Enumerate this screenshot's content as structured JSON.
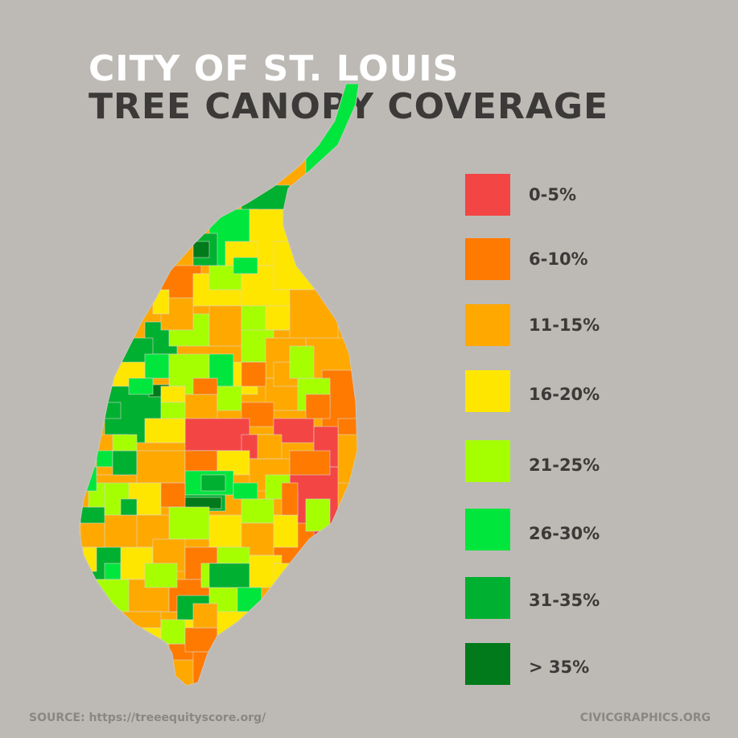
{
  "title": {
    "line1": "CITY OF ST. LOUIS",
    "line2": "TREE CANOPY COVERAGE"
  },
  "legend": [
    {
      "label": "0-5%",
      "color": "#f44545"
    },
    {
      "label": "6-10%",
      "color": "#ff7a00"
    },
    {
      "label": "11-15%",
      "color": "#ffa900"
    },
    {
      "label": "16-20%",
      "color": "#ffe600"
    },
    {
      "label": "21-25%",
      "color": "#a6ff00"
    },
    {
      "label": "26-30%",
      "color": "#00e63d"
    },
    {
      "label": "31-35%",
      "color": "#00b030"
    },
    {
      "label": "> 35%",
      "color": "#007a1a"
    }
  ],
  "colors": {
    "background": "#bdbab5",
    "title_primary": "#ffffff",
    "title_secondary": "#3b3a38",
    "footer_text": "#8a8783"
  },
  "footer": {
    "source": "SOURCE: https://treeequityscore.org/",
    "credit": "CIVICGRAPHICS.ORG"
  }
}
